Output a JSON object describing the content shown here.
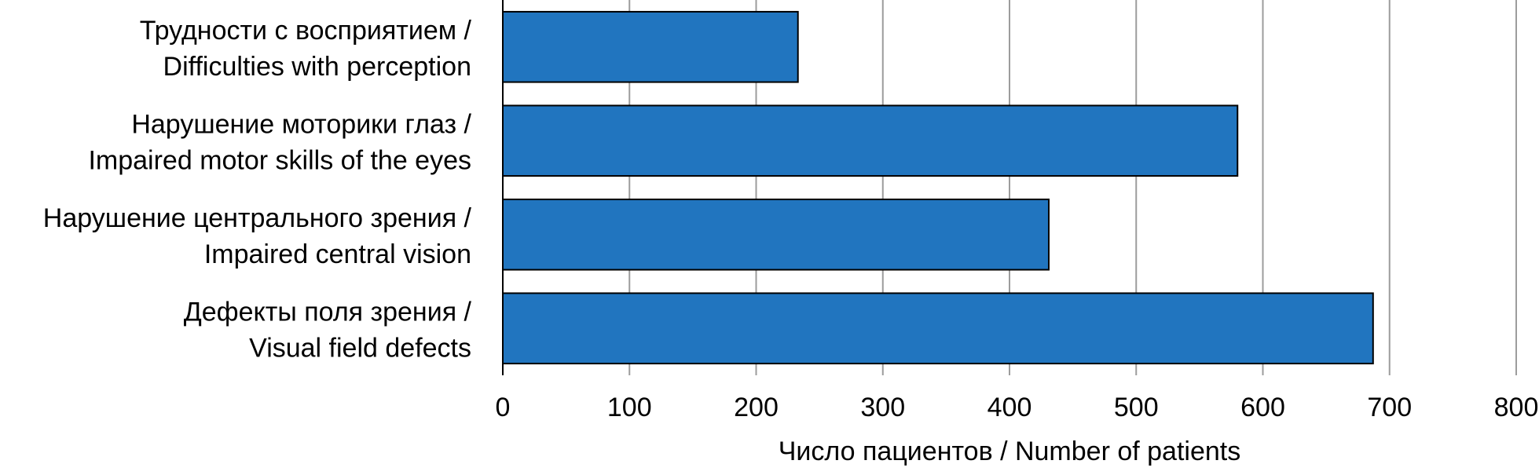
{
  "chart_data": {
    "type": "bar",
    "orientation": "horizontal",
    "categories": [
      [
        "Трудности с восприятием /",
        "Difficulties with perception"
      ],
      [
        "Нарушение моторики глаз /",
        "Impaired motor skills of the eyes"
      ],
      [
        "Нарушение центрального зрения /",
        "Impaired central vision"
      ],
      [
        "Дефекты поля зрения /",
        "Visual field defects"
      ]
    ],
    "values": [
      233,
      580,
      431,
      687
    ],
    "xlabel": "Число пациентов / Number of patients",
    "ylabel": "",
    "xlim": [
      0,
      800
    ],
    "xticks": [
      "0",
      "100",
      "200",
      "300",
      "400",
      "500",
      "600",
      "700",
      "800"
    ],
    "grid": "vertical",
    "legend": "none",
    "colors": {
      "bar": "#2175bf",
      "bar_edge": "#000000",
      "grid": "#9c9c9c"
    }
  }
}
